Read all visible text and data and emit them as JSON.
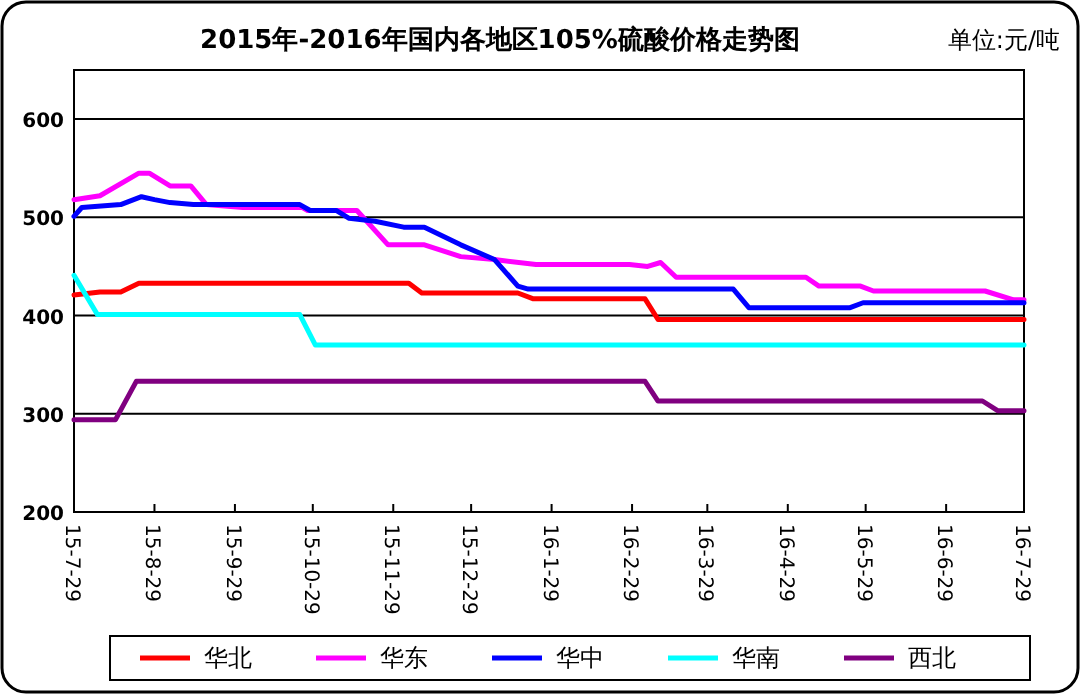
{
  "chart_data": {
    "type": "line",
    "title": "2015年-2016年国内各地区105%硫酸价格走势图",
    "annotations": [
      "单位:元/吨"
    ],
    "xlim": [
      "2015-07-29",
      "2016-07-29"
    ],
    "xticks": [
      {
        "value": "2015-07-29",
        "label": "15-7-29"
      },
      {
        "value": "2015-08-29",
        "label": "15-8-29"
      },
      {
        "value": "2015-09-29",
        "label": "15-9-29"
      },
      {
        "value": "2015-10-29",
        "label": "15-10-29"
      },
      {
        "value": "2015-11-29",
        "label": "15-11-29"
      },
      {
        "value": "2015-12-29",
        "label": "15-12-29"
      },
      {
        "value": "2016-01-29",
        "label": "16-1-29"
      },
      {
        "value": "2016-02-29",
        "label": "16-2-29"
      },
      {
        "value": "2016-03-29",
        "label": "16-3-29"
      },
      {
        "value": "2016-04-29",
        "label": "16-4-29"
      },
      {
        "value": "2016-05-29",
        "label": "16-5-29"
      },
      {
        "value": "2016-06-29",
        "label": "16-6-29"
      },
      {
        "value": "2016-07-29",
        "label": "16-7-29"
      }
    ],
    "ylim": [
      200,
      650
    ],
    "yticks": [
      200,
      300,
      400,
      500,
      600
    ],
    "grid": "y",
    "legend": "bottom",
    "marker": "none",
    "line_style": "solid",
    "series": [
      {
        "name": "华北",
        "color": "#ff0000",
        "x": [
          "2015-07-29",
          "2015-08-08",
          "2015-08-16",
          "2015-08-23",
          "2015-12-05",
          "2015-12-10",
          "2016-01-16",
          "2016-01-22",
          "2016-03-05",
          "2016-03-10",
          "2016-07-29"
        ],
        "values": [
          421,
          424,
          424,
          433,
          433,
          423,
          423,
          417,
          417,
          396,
          396
        ]
      },
      {
        "name": "华东",
        "color": "#ff00ff",
        "x": [
          "2015-07-29",
          "2015-08-08",
          "2015-08-23",
          "2015-08-27",
          "2015-09-04",
          "2015-09-12",
          "2015-09-18",
          "2015-10-02",
          "2015-10-25",
          "2015-10-27",
          "2015-11-15",
          "2015-11-27",
          "2015-12-11",
          "2015-12-25",
          "2016-01-07",
          "2016-01-23",
          "2016-02-28",
          "2016-03-06",
          "2016-03-11",
          "2016-03-17",
          "2016-05-06",
          "2016-05-11",
          "2016-05-27",
          "2016-06-01",
          "2016-07-14",
          "2016-07-25",
          "2016-07-29"
        ],
        "values": [
          518,
          522,
          545,
          545,
          532,
          532,
          513,
          510,
          510,
          507,
          507,
          472,
          472,
          460,
          457,
          452,
          452,
          450,
          454,
          439,
          439,
          430,
          430,
          425,
          425,
          416,
          416
        ]
      },
      {
        "name": "华中",
        "color": "#0000ff",
        "x": [
          "2015-07-29",
          "2015-08-01",
          "2015-08-16",
          "2015-08-24",
          "2015-08-29",
          "2015-09-04",
          "2015-09-13",
          "2015-10-24",
          "2015-10-28",
          "2015-11-07",
          "2015-11-12",
          "2015-11-22",
          "2015-12-03",
          "2015-12-11",
          "2015-12-25",
          "2016-01-07",
          "2016-01-16",
          "2016-01-20",
          "2016-04-08",
          "2016-04-14",
          "2016-05-23",
          "2016-05-28",
          "2016-07-29"
        ],
        "values": [
          501,
          510,
          513,
          521,
          518,
          515,
          513,
          513,
          507,
          507,
          499,
          496,
          490,
          490,
          472,
          457,
          430,
          427,
          427,
          408,
          408,
          413,
          413
        ]
      },
      {
        "name": "华南",
        "color": "#00ffff",
        "x": [
          "2015-07-29",
          "2015-08-07",
          "2015-10-24",
          "2015-10-30",
          "2016-07-29"
        ],
        "values": [
          441,
          401,
          401,
          370,
          370
        ]
      },
      {
        "name": "西北",
        "color": "#800080",
        "x": [
          "2015-07-29",
          "2015-08-14",
          "2015-08-22",
          "2016-03-05",
          "2016-03-10",
          "2016-07-13",
          "2016-07-19",
          "2016-07-29"
        ],
        "values": [
          294,
          294,
          333,
          333,
          313,
          313,
          303,
          303
        ]
      }
    ]
  }
}
